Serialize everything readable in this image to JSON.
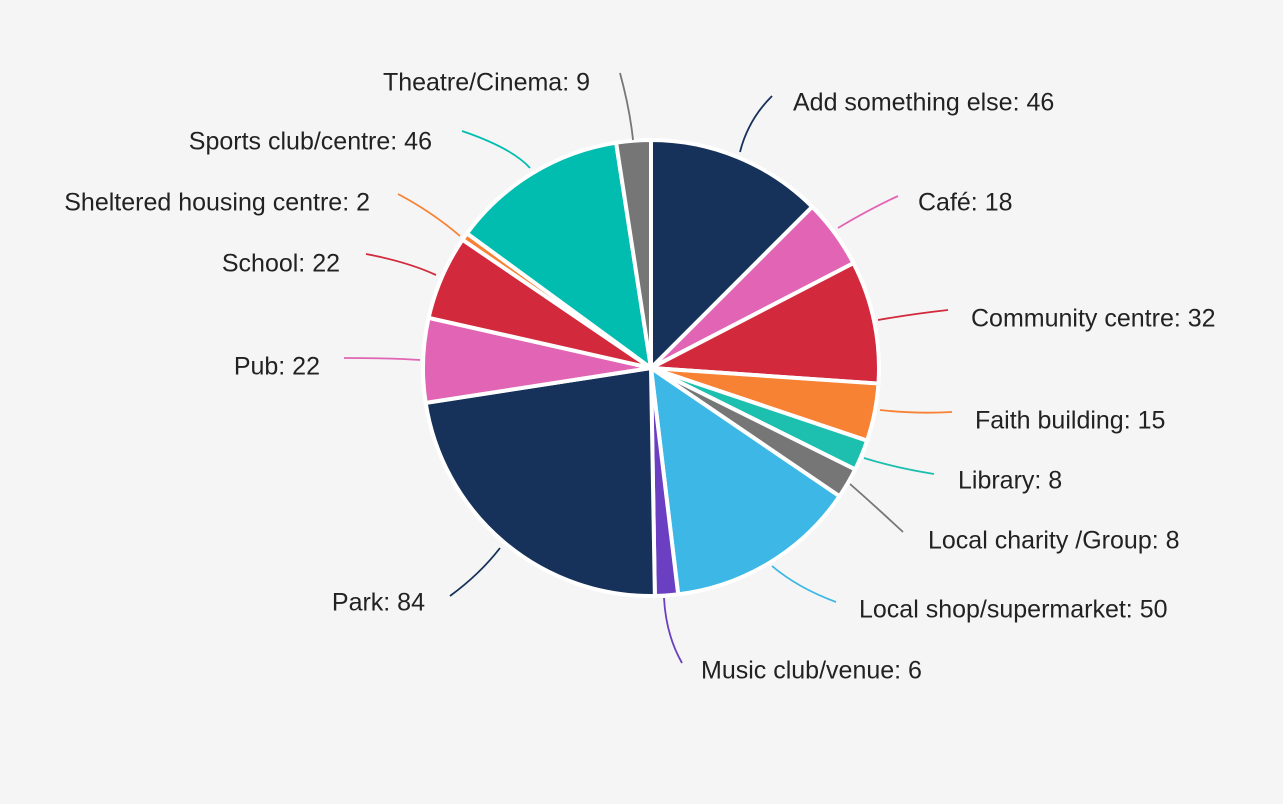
{
  "chart_data": {
    "type": "pie",
    "title": "",
    "slices": [
      {
        "label": "Add something else",
        "value": 46,
        "color": "#17325a"
      },
      {
        "label": "Café",
        "value": 18,
        "color": "#e165b4"
      },
      {
        "label": "Community centre",
        "value": 32,
        "color": "#d22a3c"
      },
      {
        "label": "Faith building",
        "value": 15,
        "color": "#f78234"
      },
      {
        "label": "Library",
        "value": 8,
        "color": "#1dbfae"
      },
      {
        "label": "Local charity /Group",
        "value": 8,
        "color": "#767676"
      },
      {
        "label": "Local shop/supermarket",
        "value": 50,
        "color": "#3db7e6"
      },
      {
        "label": "Music club/venue",
        "value": 6,
        "color": "#6a3fc2"
      },
      {
        "label": "Park",
        "value": 84,
        "color": "#17325a"
      },
      {
        "label": "Pub",
        "value": 22,
        "color": "#e165b4"
      },
      {
        "label": "School",
        "value": 22,
        "color": "#d22a3c"
      },
      {
        "label": "Sheltered housing centre",
        "value": 2,
        "color": "#f78234"
      },
      {
        "label": "Sports club/centre",
        "value": 46,
        "color": "#00bdb0"
      },
      {
        "label": "Theatre/Cinema",
        "value": 9,
        "color": "#767676"
      }
    ],
    "label_format": "{label}: {value}",
    "legend": "none"
  }
}
